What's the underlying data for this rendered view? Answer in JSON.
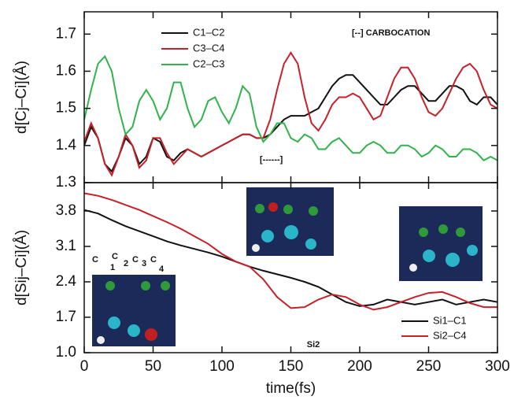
{
  "chart_data": [
    {
      "type": "line",
      "ylabel": "d[Cj–Ci](Å)",
      "x": [
        0,
        5,
        10,
        15,
        20,
        25,
        30,
        35,
        40,
        45,
        50,
        55,
        60,
        65,
        70,
        75,
        80,
        85,
        90,
        95,
        100,
        105,
        110,
        115,
        120,
        125,
        130,
        135,
        140,
        145,
        150,
        155,
        160,
        165,
        170,
        175,
        180,
        185,
        190,
        195,
        200,
        205,
        210,
        215,
        220,
        225,
        230,
        235,
        240,
        245,
        250,
        255,
        260,
        265,
        270,
        275,
        280,
        285,
        290,
        295,
        300
      ],
      "xlim": [
        0,
        300
      ],
      "ylim": [
        1.3,
        1.76
      ],
      "yticks": [
        1.3,
        1.4,
        1.5,
        1.6,
        1.7
      ],
      "annotations": [
        "[--]  CARBOCATION",
        "[------]"
      ],
      "series": [
        {
          "name": "C1–C2",
          "color": "#111111",
          "values": [
            1.4,
            1.45,
            1.42,
            1.35,
            1.33,
            1.37,
            1.42,
            1.4,
            1.35,
            1.37,
            1.42,
            1.41,
            1.37,
            1.36,
            1.38,
            1.39,
            1.38,
            1.37,
            1.38,
            1.39,
            1.4,
            1.41,
            1.42,
            1.43,
            1.43,
            1.42,
            1.42,
            1.43,
            1.45,
            1.47,
            1.48,
            1.48,
            1.48,
            1.49,
            1.5,
            1.53,
            1.56,
            1.58,
            1.59,
            1.59,
            1.57,
            1.55,
            1.53,
            1.51,
            1.51,
            1.53,
            1.55,
            1.56,
            1.56,
            1.54,
            1.52,
            1.52,
            1.54,
            1.56,
            1.56,
            1.55,
            1.52,
            1.51,
            1.53,
            1.53,
            1.51
          ]
        },
        {
          "name": "C3–C4",
          "color": "#c8202a",
          "values": [
            1.41,
            1.46,
            1.42,
            1.35,
            1.32,
            1.37,
            1.43,
            1.4,
            1.34,
            1.36,
            1.42,
            1.42,
            1.38,
            1.35,
            1.37,
            1.39,
            1.38,
            1.37,
            1.38,
            1.39,
            1.4,
            1.41,
            1.42,
            1.43,
            1.43,
            1.42,
            1.42,
            1.47,
            1.55,
            1.62,
            1.65,
            1.62,
            1.53,
            1.46,
            1.44,
            1.47,
            1.51,
            1.53,
            1.53,
            1.54,
            1.53,
            1.5,
            1.47,
            1.48,
            1.53,
            1.58,
            1.61,
            1.61,
            1.58,
            1.53,
            1.49,
            1.48,
            1.5,
            1.54,
            1.58,
            1.61,
            1.62,
            1.6,
            1.55,
            1.51,
            1.5
          ]
        },
        {
          "name": "C2–C3",
          "color": "#2fb34a",
          "values": [
            1.47,
            1.55,
            1.62,
            1.64,
            1.6,
            1.5,
            1.43,
            1.45,
            1.52,
            1.55,
            1.52,
            1.47,
            1.5,
            1.57,
            1.57,
            1.5,
            1.45,
            1.47,
            1.52,
            1.53,
            1.49,
            1.46,
            1.5,
            1.56,
            1.54,
            1.45,
            1.41,
            1.43,
            1.46,
            1.46,
            1.42,
            1.41,
            1.43,
            1.42,
            1.39,
            1.39,
            1.41,
            1.42,
            1.4,
            1.38,
            1.38,
            1.4,
            1.41,
            1.4,
            1.38,
            1.38,
            1.4,
            1.4,
            1.39,
            1.37,
            1.38,
            1.4,
            1.39,
            1.37,
            1.37,
            1.39,
            1.39,
            1.38,
            1.36,
            1.37,
            1.36
          ]
        }
      ]
    },
    {
      "type": "line",
      "ylabel": "d[Sij–Ci](Å)",
      "xlabel": "time(fs)",
      "x": [
        0,
        10,
        20,
        30,
        40,
        50,
        60,
        70,
        80,
        90,
        100,
        110,
        120,
        130,
        140,
        150,
        160,
        170,
        180,
        190,
        200,
        210,
        220,
        230,
        240,
        250,
        260,
        270,
        280,
        290,
        300
      ],
      "xlim": [
        0,
        300
      ],
      "xticks": [
        0,
        50,
        100,
        150,
        200,
        250,
        300
      ],
      "ylim": [
        1.0,
        4.36
      ],
      "yticks": [
        {
          "value": 1,
          "label": "1.0"
        },
        1.7,
        2.4,
        3.1,
        3.8
      ],
      "annotations": [
        "C",
        "C",
        "C",
        "C",
        "1",
        "2",
        "3",
        "4",
        "Si2"
      ],
      "series": [
        {
          "name": "Si1–C1",
          "color": "#111111",
          "values": [
            3.82,
            3.75,
            3.62,
            3.5,
            3.4,
            3.3,
            3.2,
            3.12,
            3.05,
            2.98,
            2.9,
            2.8,
            2.7,
            2.62,
            2.55,
            2.48,
            2.4,
            2.3,
            2.15,
            2.0,
            1.92,
            1.95,
            2.05,
            2.0,
            1.95,
            2.0,
            2.05,
            1.95,
            2.0,
            2.05,
            2.0
          ]
        },
        {
          "name": "Si2–C4",
          "color": "#c8202a",
          "values": [
            4.15,
            4.1,
            4.02,
            3.92,
            3.82,
            3.7,
            3.58,
            3.45,
            3.3,
            3.15,
            2.95,
            2.8,
            2.7,
            2.45,
            2.1,
            1.88,
            1.9,
            2.05,
            2.15,
            2.1,
            1.95,
            1.85,
            1.9,
            2.0,
            2.1,
            2.18,
            2.2,
            2.1,
            1.98,
            1.9,
            1.9
          ]
        }
      ]
    }
  ]
}
